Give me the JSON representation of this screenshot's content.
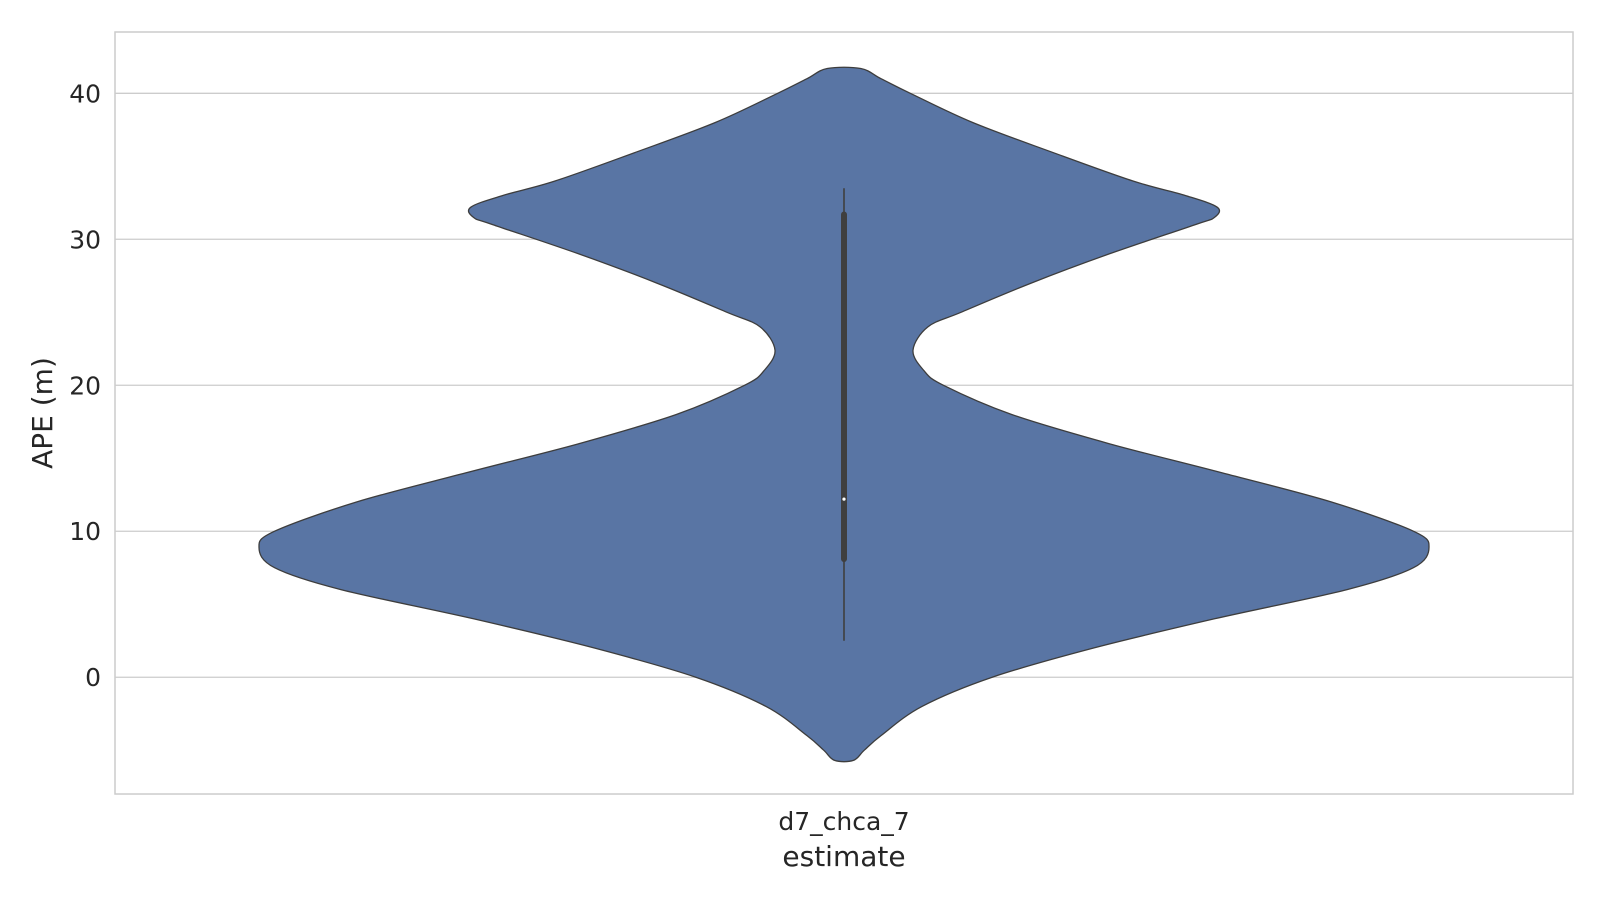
{
  "chart_data": {
    "type": "violin",
    "title": "",
    "xlabel": "estimate",
    "ylabel": "APE (m)",
    "categories": [
      "d7_chca_7"
    ],
    "ylim": [
      -8.0,
      44.2
    ],
    "yticks": [
      0,
      10,
      20,
      30,
      40
    ],
    "grid": "horizontal",
    "colors": {
      "violin_fill": "#5975a4",
      "violin_edge": "#3d3d3d",
      "box": "#3f3f3f",
      "grid": "#cccccc",
      "frame": "#cccccc",
      "median": "#ffffff"
    },
    "violins": [
      {
        "category": "d7_chca_7",
        "density_profile": [
          {
            "y": 41.7,
            "w": 0.043
          },
          {
            "y": 41.0,
            "w": 0.095
          },
          {
            "y": 40.0,
            "w": 0.17
          },
          {
            "y": 38.0,
            "w": 0.33
          },
          {
            "y": 36.0,
            "w": 0.53
          },
          {
            "y": 34.0,
            "w": 0.74
          },
          {
            "y": 33.0,
            "w": 0.875
          },
          {
            "y": 32.2,
            "w": 0.957
          },
          {
            "y": 31.5,
            "w": 0.95
          },
          {
            "y": 31.0,
            "w": 0.9
          },
          {
            "y": 29.0,
            "w": 0.68
          },
          {
            "y": 27.0,
            "w": 0.48
          },
          {
            "y": 25.0,
            "w": 0.3
          },
          {
            "y": 24.0,
            "w": 0.215
          },
          {
            "y": 22.4,
            "w": 0.177
          },
          {
            "y": 21.0,
            "w": 0.205
          },
          {
            "y": 20.0,
            "w": 0.255
          },
          {
            "y": 18.0,
            "w": 0.43
          },
          {
            "y": 16.0,
            "w": 0.68
          },
          {
            "y": 14.0,
            "w": 0.97
          },
          {
            "y": 12.0,
            "w": 1.25
          },
          {
            "y": 10.0,
            "w": 1.46
          },
          {
            "y": 8.9,
            "w": 1.5
          },
          {
            "y": 7.5,
            "w": 1.46
          },
          {
            "y": 6.0,
            "w": 1.29
          },
          {
            "y": 4.0,
            "w": 0.95
          },
          {
            "y": 2.0,
            "w": 0.64
          },
          {
            "y": 0.0,
            "w": 0.38
          },
          {
            "y": -2.0,
            "w": 0.2
          },
          {
            "y": -4.0,
            "w": 0.095
          },
          {
            "y": -5.0,
            "w": 0.052
          },
          {
            "y": -5.7,
            "w": 0.024
          }
        ],
        "whisker_low": 2.5,
        "q1": 8.1,
        "median": 12.2,
        "q3": 31.7,
        "whisker_high": 33.5
      }
    ]
  }
}
